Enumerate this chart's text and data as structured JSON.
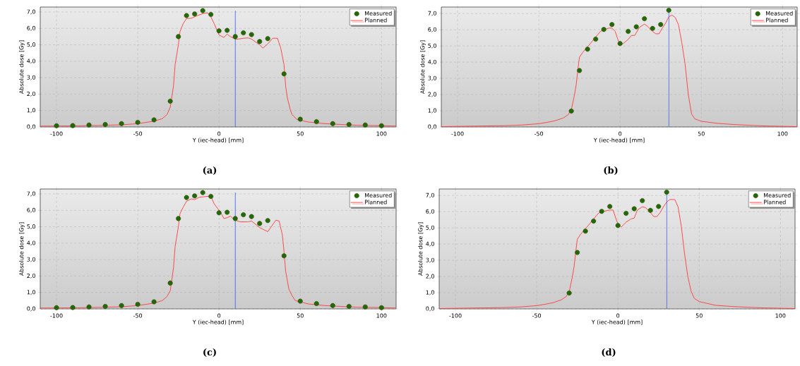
{
  "chart_data": [
    {
      "type": "line",
      "title": "(a)",
      "xlabel": "Y (iec-head) [mm]",
      "ylabel": "Absolute dose [Gy]",
      "xlim": [
        -110,
        109
      ],
      "ylim": [
        0,
        7.3
      ],
      "xticks": [
        -100,
        -50,
        0,
        50,
        100
      ],
      "yticks": [
        {
          "value": 0,
          "label": "0,0"
        },
        {
          "value": 1,
          "label": "1,0"
        },
        {
          "value": 2,
          "label": "2,0"
        },
        {
          "value": 3,
          "label": "3,0"
        },
        {
          "value": 4,
          "label": "4,0"
        },
        {
          "value": 5,
          "label": "5,0"
        },
        {
          "value": 6,
          "label": "6,0"
        },
        {
          "value": 7,
          "label": "7,0"
        }
      ],
      "grid": true,
      "legend": "top right",
      "marker": "circle",
      "ref_lines": [
        {
          "axis": "x",
          "value": 10,
          "color": "#3a5cf0"
        }
      ],
      "series": [
        {
          "name": "Measured",
          "type": "scatter",
          "color": "#1e6b00",
          "x": [
            -100,
            -90,
            -80,
            -70,
            -60,
            -50,
            -40,
            -30,
            -25,
            -20,
            -15,
            -10,
            -5,
            0,
            5,
            10,
            15,
            20,
            25,
            30,
            40,
            50,
            60,
            70,
            80,
            90,
            100
          ],
          "values": [
            0.07,
            0.08,
            0.12,
            0.15,
            0.2,
            0.28,
            0.43,
            1.57,
            5.5,
            6.78,
            6.88,
            7.08,
            6.85,
            5.85,
            5.88,
            5.5,
            5.73,
            5.62,
            5.2,
            5.38,
            3.23,
            0.47,
            0.32,
            0.2,
            0.15,
            0.12,
            0.07
          ]
        },
        {
          "name": "Planned",
          "marker": "none",
          "color": "#ff3b3b",
          "x": [
            -110,
            -90,
            -70,
            -60,
            -50,
            -40,
            -35,
            -32,
            -30,
            -28,
            -27,
            -25,
            -24,
            -22,
            -20,
            -17,
            -14,
            -10,
            -7,
            -5,
            -3,
            0,
            3,
            5,
            7,
            10,
            12,
            15,
            18,
            20,
            25,
            27,
            30,
            33,
            36,
            38,
            40,
            41,
            42,
            44,
            45,
            48,
            55,
            65,
            75,
            85,
            100,
            109
          ],
          "values": [
            0.05,
            0.06,
            0.1,
            0.13,
            0.2,
            0.35,
            0.5,
            0.75,
            1.2,
            2.5,
            3.8,
            5.0,
            5.8,
            6.3,
            6.6,
            6.62,
            6.75,
            6.9,
            6.95,
            6.7,
            6.3,
            5.6,
            5.45,
            5.65,
            5.5,
            5.35,
            5.35,
            5.4,
            5.42,
            5.35,
            5.0,
            4.8,
            5.05,
            5.4,
            5.4,
            4.8,
            3.8,
            2.5,
            1.8,
            1.0,
            0.75,
            0.45,
            0.3,
            0.2,
            0.15,
            0.1,
            0.08,
            0.05
          ]
        }
      ]
    },
    {
      "type": "line",
      "title": "(b)",
      "xlabel": "Y (iec-head) [mm]",
      "ylabel": "Absolute dose [Gy]",
      "xlim": [
        -110,
        109
      ],
      "ylim": [
        0,
        7.4
      ],
      "xticks": [
        -100,
        -50,
        0,
        50,
        100
      ],
      "yticks": [
        {
          "value": 0,
          "label": "0,0"
        },
        {
          "value": 1,
          "label": "1,0"
        },
        {
          "value": 2,
          "label": "2,0"
        },
        {
          "value": 3,
          "label": "3,0"
        },
        {
          "value": 4,
          "label": "4,0"
        },
        {
          "value": 5,
          "label": "5,0"
        },
        {
          "value": 6,
          "label": "6,0"
        },
        {
          "value": 7,
          "label": "7,0"
        }
      ],
      "grid": true,
      "legend": "top right",
      "marker": "circle",
      "ref_lines": [
        {
          "axis": "x",
          "value": 30,
          "color": "#3a5cf0"
        }
      ],
      "series": [
        {
          "name": "Measured",
          "type": "scatter",
          "color": "#1e6b00",
          "x": [
            -30,
            -25,
            -20,
            -15,
            -10,
            -5,
            0,
            5,
            10,
            15,
            20,
            25,
            30
          ],
          "values": [
            0.98,
            3.48,
            4.8,
            5.42,
            6.02,
            6.32,
            5.15,
            5.9,
            6.18,
            6.68,
            6.08,
            6.32,
            7.2
          ]
        },
        {
          "name": "Planned",
          "marker": "none",
          "color": "#ff3b3b",
          "x": [
            -110,
            -90,
            -70,
            -60,
            -50,
            -45,
            -40,
            -35,
            -32,
            -30,
            -28,
            -27,
            -26,
            -25,
            -23,
            -20,
            -17,
            -15,
            -12,
            -10,
            -7,
            -5,
            -3,
            -1,
            0,
            2,
            5,
            7,
            9,
            12,
            15,
            17,
            20,
            22,
            24,
            26,
            28,
            30,
            32,
            34,
            36,
            38,
            40,
            42,
            44,
            46,
            50,
            60,
            70,
            80,
            90,
            109
          ],
          "values": [
            0.02,
            0.05,
            0.08,
            0.12,
            0.2,
            0.28,
            0.38,
            0.55,
            0.75,
            1.05,
            2.0,
            2.6,
            3.5,
            4.3,
            4.6,
            4.95,
            5.3,
            5.55,
            5.9,
            6.0,
            6.1,
            6.1,
            5.9,
            5.3,
            5.1,
            5.15,
            5.4,
            5.65,
            5.65,
            6.15,
            6.35,
            6.2,
            5.9,
            5.75,
            5.75,
            6.1,
            6.4,
            6.8,
            6.9,
            6.75,
            6.3,
            5.2,
            3.9,
            2.0,
            0.8,
            0.5,
            0.35,
            0.22,
            0.15,
            0.1,
            0.06,
            0.02
          ]
        }
      ]
    },
    {
      "type": "line",
      "title": "(c)",
      "xlabel": "Y (iec-head) [mm]",
      "ylabel": "Absolute dose [Gy]",
      "xlim": [
        -110,
        109
      ],
      "ylim": [
        0,
        7.3
      ],
      "xticks": [
        -100,
        -50,
        0,
        50,
        100
      ],
      "yticks": [
        {
          "value": 0,
          "label": "0,0"
        },
        {
          "value": 1,
          "label": "1,0"
        },
        {
          "value": 2,
          "label": "2,0"
        },
        {
          "value": 3,
          "label": "3,0"
        },
        {
          "value": 4,
          "label": "4,0"
        },
        {
          "value": 5,
          "label": "5,0"
        },
        {
          "value": 6,
          "label": "6,0"
        },
        {
          "value": 7,
          "label": "7,0"
        }
      ],
      "grid": true,
      "legend": "top right",
      "marker": "circle",
      "ref_lines": [
        {
          "axis": "x",
          "value": 10,
          "color": "#3a5cf0"
        }
      ],
      "series": [
        {
          "name": "Measured",
          "type": "scatter",
          "color": "#1e6b00",
          "x": [
            -100,
            -90,
            -80,
            -70,
            -60,
            -50,
            -40,
            -30,
            -25,
            -20,
            -15,
            -10,
            -5,
            0,
            5,
            10,
            15,
            20,
            25,
            30,
            40,
            50,
            60,
            70,
            80,
            90,
            100
          ],
          "values": [
            0.07,
            0.08,
            0.12,
            0.15,
            0.2,
            0.28,
            0.43,
            1.57,
            5.5,
            6.78,
            6.88,
            7.08,
            6.85,
            5.85,
            5.88,
            5.5,
            5.73,
            5.62,
            5.2,
            5.38,
            3.23,
            0.47,
            0.32,
            0.2,
            0.15,
            0.12,
            0.07
          ]
        },
        {
          "name": "Planned",
          "marker": "none",
          "color": "#ff3b3b",
          "x": [
            -110,
            -90,
            -70,
            -60,
            -50,
            -40,
            -35,
            -32,
            -30,
            -28,
            -27,
            -25,
            -24,
            -22,
            -20,
            -17,
            -15,
            -12,
            -7,
            -5,
            -3,
            0,
            2,
            3,
            5,
            7,
            8,
            10,
            13,
            18,
            20,
            25,
            30,
            35,
            37,
            39,
            40,
            41,
            43,
            45,
            47,
            55,
            65,
            75,
            85,
            100,
            109
          ],
          "values": [
            0.05,
            0.06,
            0.1,
            0.13,
            0.2,
            0.35,
            0.5,
            0.75,
            1.1,
            2.5,
            3.8,
            5.0,
            5.8,
            6.2,
            6.55,
            6.7,
            6.65,
            6.8,
            6.85,
            6.85,
            6.4,
            6.0,
            5.7,
            5.5,
            5.55,
            5.65,
            5.55,
            5.4,
            5.3,
            5.3,
            5.35,
            4.95,
            4.7,
            5.4,
            5.35,
            4.5,
            3.5,
            2.3,
            1.2,
            0.8,
            0.5,
            0.3,
            0.2,
            0.15,
            0.1,
            0.08,
            0.05
          ]
        }
      ]
    },
    {
      "type": "line",
      "title": "(d)",
      "xlabel": "Y (iec-head) [mm]",
      "ylabel": "Absolute dose [Gy]",
      "xlim": [
        -110,
        109
      ],
      "ylim": [
        0,
        7.4
      ],
      "xticks": [
        -100,
        -50,
        0,
        50,
        100
      ],
      "yticks": [
        {
          "value": 0,
          "label": "0,0"
        },
        {
          "value": 1,
          "label": "1,0"
        },
        {
          "value": 2,
          "label": "2,0"
        },
        {
          "value": 3,
          "label": "3,0"
        },
        {
          "value": 4,
          "label": "4,0"
        },
        {
          "value": 5,
          "label": "5,0"
        },
        {
          "value": 6,
          "label": "6,0"
        },
        {
          "value": 7,
          "label": "7,0"
        }
      ],
      "grid": true,
      "legend": "top right",
      "marker": "circle",
      "ref_lines": [
        {
          "axis": "x",
          "value": 30,
          "color": "#3a5cf0"
        }
      ],
      "series": [
        {
          "name": "Measured",
          "type": "scatter",
          "color": "#1e6b00",
          "x": [
            -30,
            -25,
            -20,
            -15,
            -10,
            -5,
            0,
            5,
            10,
            15,
            20,
            25,
            30
          ],
          "values": [
            0.98,
            3.48,
            4.8,
            5.42,
            6.02,
            6.32,
            5.15,
            5.9,
            6.18,
            6.68,
            6.08,
            6.32,
            7.2
          ]
        },
        {
          "name": "Planned",
          "marker": "none",
          "color": "#ff3b3b",
          "x": [
            -110,
            -90,
            -70,
            -60,
            -50,
            -45,
            -40,
            -35,
            -32,
            -30,
            -28,
            -27,
            -26,
            -25,
            -23,
            -20,
            -17,
            -15,
            -12,
            -10,
            -5,
            -3,
            -1,
            0,
            2,
            5,
            8,
            10,
            12,
            15,
            17,
            20,
            22,
            24,
            26,
            28,
            30,
            32,
            35,
            37,
            39,
            41,
            43,
            45,
            47,
            50,
            60,
            70,
            80,
            90,
            109
          ],
          "values": [
            0.02,
            0.05,
            0.08,
            0.12,
            0.2,
            0.28,
            0.38,
            0.55,
            0.75,
            1.05,
            2.0,
            2.6,
            3.5,
            4.3,
            4.6,
            4.95,
            5.3,
            5.55,
            5.9,
            6.0,
            6.1,
            6.1,
            5.5,
            5.25,
            5.05,
            5.35,
            5.55,
            5.6,
            6.1,
            6.3,
            6.25,
            5.95,
            5.7,
            5.7,
            5.95,
            6.3,
            6.6,
            6.75,
            6.75,
            6.3,
            5.1,
            3.4,
            2.0,
            1.1,
            0.65,
            0.45,
            0.22,
            0.15,
            0.1,
            0.06,
            0.02
          ]
        }
      ]
    }
  ]
}
